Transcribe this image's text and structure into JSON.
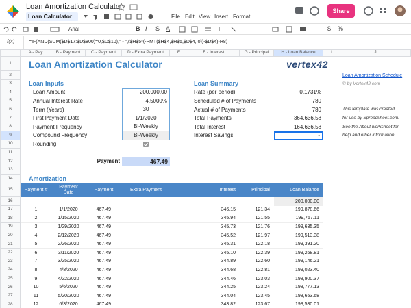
{
  "app": {
    "title": "Loan Amortization Calculator",
    "sheet_tab": "Loan Calculator",
    "menu": [
      "File",
      "Edit",
      "View",
      "Insert",
      "Format"
    ],
    "share": "Share"
  },
  "toolbar": {
    "font": "Arial",
    "buttons": [
      "B",
      "I",
      "S",
      "A"
    ],
    "right_buttons": [
      "$",
      "%"
    ]
  },
  "formula_bar": {
    "label": "f(x)",
    "formula": "=IF(AND(SUM($D$17:$D$800)=0,$D$10),\" - \",($H$5*(-PMT($H$4,$H$5,$D$4,,0))-$D$4)-H8)"
  },
  "columns": [
    "A - Pay",
    "B - Payment",
    "C - Payment",
    "D - Extra Payment",
    "E",
    "F - Interest",
    "G - Principal",
    "H - Loan Balance",
    "I",
    "J"
  ],
  "row_numbers": [
    1,
    2,
    3,
    4,
    5,
    6,
    7,
    8,
    9,
    10,
    11,
    12,
    13,
    14,
    15,
    16,
    17,
    18,
    19,
    20,
    21,
    22,
    23,
    24,
    25,
    26,
    27,
    28
  ],
  "sheet": {
    "title": "Loan Amortization Calculator",
    "logo": "vertex42",
    "link": "Loan Amortization Schedule",
    "copyright": "© by Vertex42.com",
    "note": [
      "This template was created",
      "for use by Spreadsheet.com.",
      "See the About worksheet for",
      "help and other information."
    ],
    "inputs_title": "Loan Inputs",
    "inputs": [
      [
        "Loan Amount",
        "200,000.00"
      ],
      [
        "Annual Interest Rate",
        "4.5000%"
      ],
      [
        "Term (Years)",
        "30"
      ],
      [
        "First Payment Date",
        "1/1/2020"
      ],
      [
        "Payment Frequency",
        "Bi-Weekly"
      ],
      [
        "Compound Frequency",
        "Bi-Weekly"
      ]
    ],
    "rounding_label": "Rounding",
    "rounding_checked": true,
    "summary_title": "Loan Summary",
    "summary": [
      [
        "Rate (per period)",
        "0.1731%"
      ],
      [
        "Scheduled # of Payments",
        "780"
      ],
      [
        "Actual # of Payments",
        "780"
      ],
      [
        "Total Payments",
        "364,636.58"
      ],
      [
        "Total Interest",
        "164,636.58"
      ],
      [
        "Interest Savings",
        "-"
      ]
    ],
    "payment_label": "Payment",
    "payment": "467.49",
    "amortization_title": "Amortization",
    "amortization": {
      "header": [
        "Payment #",
        "Payment Date",
        "Payment",
        "Extra Payment",
        "Interest",
        "Principal",
        "Loan Balance"
      ],
      "opening_balance": "200,000.00",
      "rows": [
        [
          1,
          "1/1/2020",
          "467.49",
          "346.15",
          "121.34",
          "199,878.66"
        ],
        [
          2,
          "1/15/2020",
          "467.49",
          "345.94",
          "121.55",
          "199,757.11"
        ],
        [
          3,
          "1/29/2020",
          "467.49",
          "345.73",
          "121.76",
          "199,635.35"
        ],
        [
          4,
          "2/12/2020",
          "467.49",
          "345.52",
          "121.97",
          "199,513.38"
        ],
        [
          5,
          "2/26/2020",
          "467.49",
          "345.31",
          "122.18",
          "199,391.20"
        ],
        [
          6,
          "3/11/2020",
          "467.49",
          "345.10",
          "122.39",
          "199,268.81"
        ],
        [
          7,
          "3/25/2020",
          "467.49",
          "344.89",
          "122.60",
          "199,146.21"
        ],
        [
          8,
          "4/8/2020",
          "467.49",
          "344.68",
          "122.81",
          "199,023.40"
        ],
        [
          9,
          "4/22/2020",
          "467.49",
          "344.46",
          "123.03",
          "198,900.37"
        ],
        [
          10,
          "5/6/2020",
          "467.49",
          "344.25",
          "123.24",
          "198,777.13"
        ],
        [
          11,
          "5/20/2020",
          "467.49",
          "344.04",
          "123.45",
          "198,653.68"
        ],
        [
          12,
          "6/3/2020",
          "467.49",
          "343.82",
          "123.67",
          "198,530.01"
        ]
      ]
    }
  }
}
